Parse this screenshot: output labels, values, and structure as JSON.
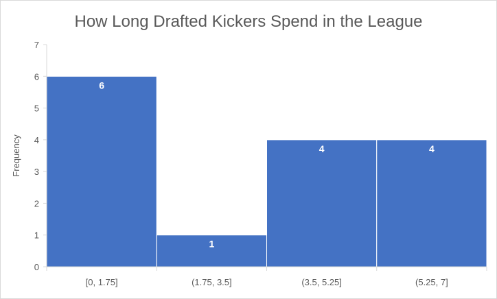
{
  "chart_data": {
    "type": "bar",
    "title": "How Long Drafted Kickers Spend in the League",
    "xlabel": "",
    "ylabel": "Frequency",
    "categories": [
      "[0, 1.75]",
      "(1.75, 3.5]",
      "(3.5, 5.25]",
      "(5.25, 7]"
    ],
    "values": [
      6,
      1,
      4,
      4
    ],
    "data_labels": [
      "6",
      "1",
      "4",
      "4"
    ],
    "ylim": [
      0,
      7
    ],
    "yticks": [
      "0",
      "1",
      "2",
      "3",
      "4",
      "5",
      "6",
      "7"
    ],
    "grid": false,
    "legend": "none",
    "colors": {
      "bar": "#4472C4",
      "bar_edge": "#ffffff",
      "axis": "#d9d9d9",
      "text": "#595959",
      "data_label": "#ffffff"
    }
  }
}
